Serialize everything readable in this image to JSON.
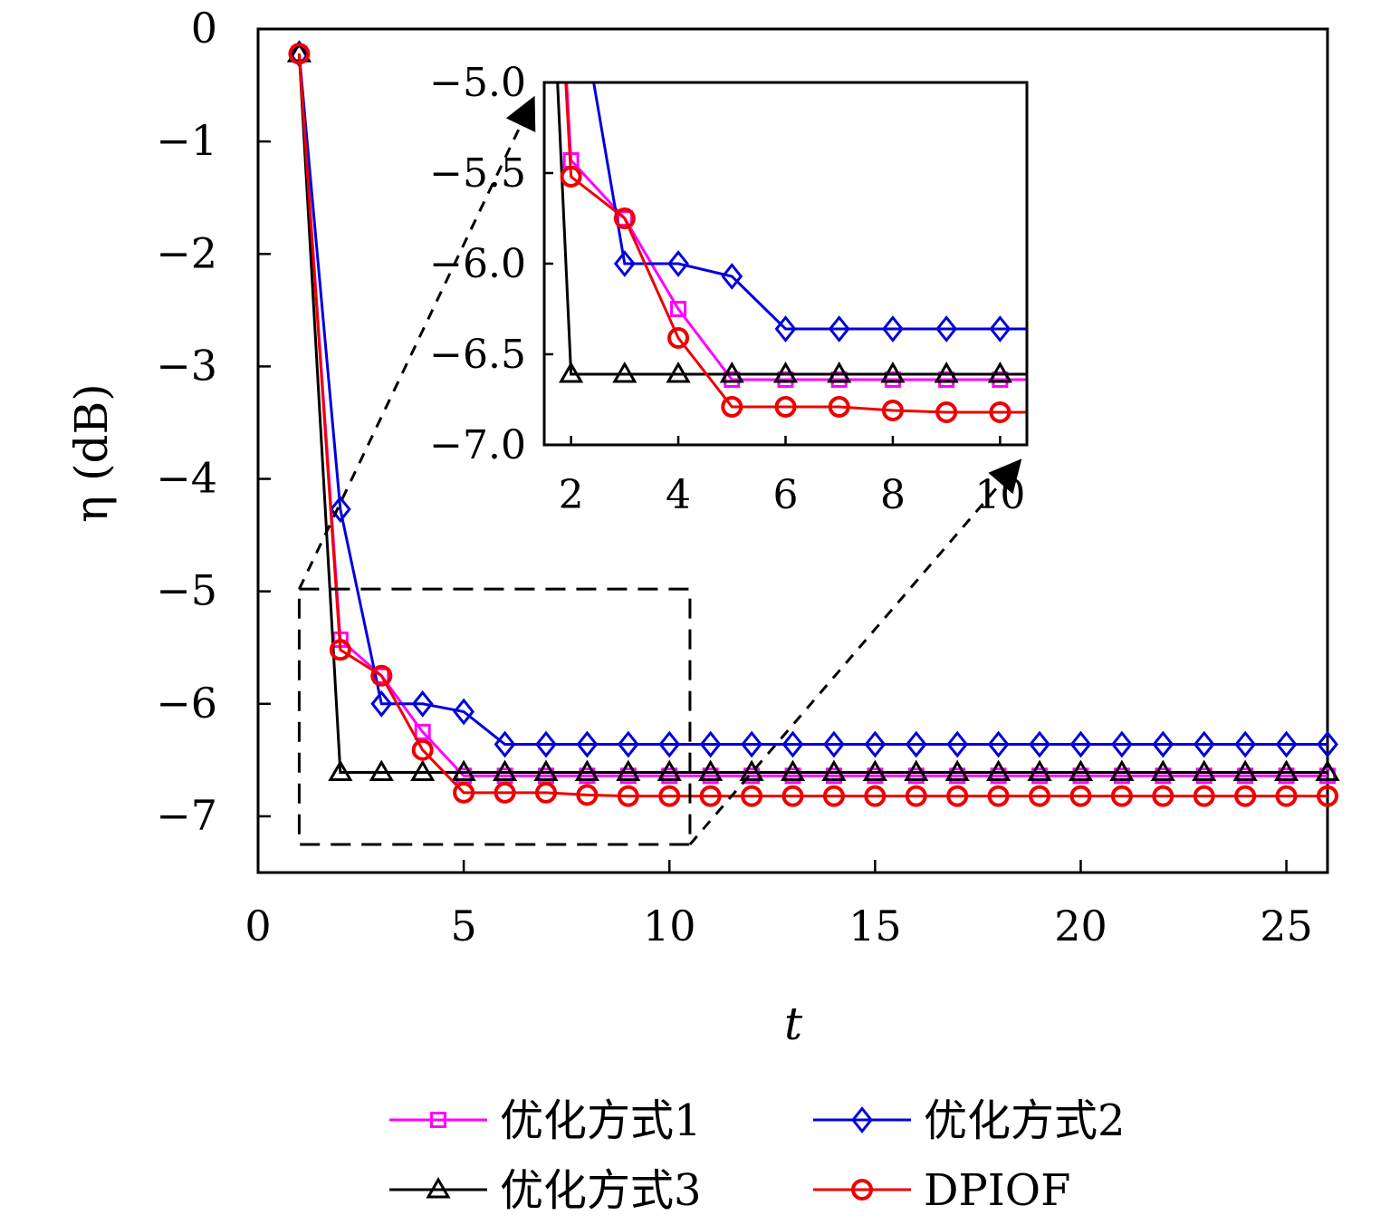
{
  "chart_data": {
    "type": "line",
    "title": "",
    "xlabel": "t",
    "ylabel": "η (dB)",
    "xlim": [
      0,
      26
    ],
    "ylim": [
      -7.5,
      0
    ],
    "xticks": [
      0,
      5,
      10,
      15,
      20,
      25
    ],
    "yticks": [
      0,
      -1,
      -2,
      -3,
      -4,
      -5,
      -6,
      -7
    ],
    "xtick_labels": [
      "0",
      "5",
      "10",
      "15",
      "20",
      "25"
    ],
    "ytick_labels": [
      "0",
      "−1",
      "−2",
      "−3",
      "−4",
      "−5",
      "−6",
      "−7"
    ],
    "grid": false,
    "legend_position": "bottom",
    "x": [
      1,
      2,
      3,
      4,
      5,
      6,
      7,
      8,
      9,
      10,
      11,
      12,
      13,
      14,
      15,
      16,
      17,
      18,
      19,
      20,
      21,
      22,
      23,
      24,
      25,
      26
    ],
    "series": [
      {
        "name": "优化方式1",
        "color": "#ff00ff",
        "marker": "square",
        "values": [
          -0.22,
          -5.43,
          -5.75,
          -6.25,
          -6.64,
          -6.64,
          -6.64,
          -6.64,
          -6.64,
          -6.64,
          -6.64,
          -6.64,
          -6.64,
          -6.64,
          -6.64,
          -6.64,
          -6.64,
          -6.64,
          -6.64,
          -6.64,
          -6.64,
          -6.64,
          -6.64,
          -6.64,
          -6.64,
          -6.64
        ]
      },
      {
        "name": "优化方式2",
        "color": "#0000dd",
        "marker": "diamond",
        "values": [
          -0.22,
          -4.27,
          -6.0,
          -6.0,
          -6.07,
          -6.36,
          -6.36,
          -6.36,
          -6.36,
          -6.36,
          -6.36,
          -6.36,
          -6.36,
          -6.36,
          -6.36,
          -6.36,
          -6.36,
          -6.36,
          -6.36,
          -6.36,
          -6.36,
          -6.36,
          -6.36,
          -6.36,
          -6.36,
          -6.36
        ]
      },
      {
        "name": "优化方式3",
        "color": "#000000",
        "marker": "triangle",
        "values": [
          -0.22,
          -6.61,
          -6.61,
          -6.61,
          -6.61,
          -6.61,
          -6.61,
          -6.61,
          -6.61,
          -6.61,
          -6.61,
          -6.61,
          -6.61,
          -6.61,
          -6.61,
          -6.61,
          -6.61,
          -6.61,
          -6.61,
          -6.61,
          -6.61,
          -6.61,
          -6.61,
          -6.61,
          -6.61,
          -6.61
        ]
      },
      {
        "name": "DPIOF",
        "color": "#ee0000",
        "marker": "circle",
        "values": [
          -0.22,
          -5.52,
          -5.75,
          -6.41,
          -6.79,
          -6.79,
          -6.79,
          -6.81,
          -6.82,
          -6.82,
          -6.82,
          -6.82,
          -6.82,
          -6.82,
          -6.82,
          -6.82,
          -6.82,
          -6.82,
          -6.82,
          -6.82,
          -6.82,
          -6.82,
          -6.82,
          -6.82,
          -6.82,
          -6.82
        ]
      }
    ],
    "zoom_region": {
      "xlim": [
        1,
        10.5
      ],
      "ylim": [
        -7.25,
        -4.98
      ]
    },
    "inset": {
      "xlim": [
        1.5,
        10.5
      ],
      "ylim": [
        -7.0,
        -5.0
      ],
      "xticks": [
        2,
        4,
        6,
        8,
        10
      ],
      "yticks": [
        -5.0,
        -5.5,
        -6.0,
        -6.5,
        -7.0
      ],
      "xtick_labels": [
        "2",
        "4",
        "6",
        "8",
        "10"
      ],
      "ytick_labels": [
        "−5.0",
        "−5.5",
        "−6.0",
        "−6.5",
        "−7.0"
      ]
    }
  }
}
